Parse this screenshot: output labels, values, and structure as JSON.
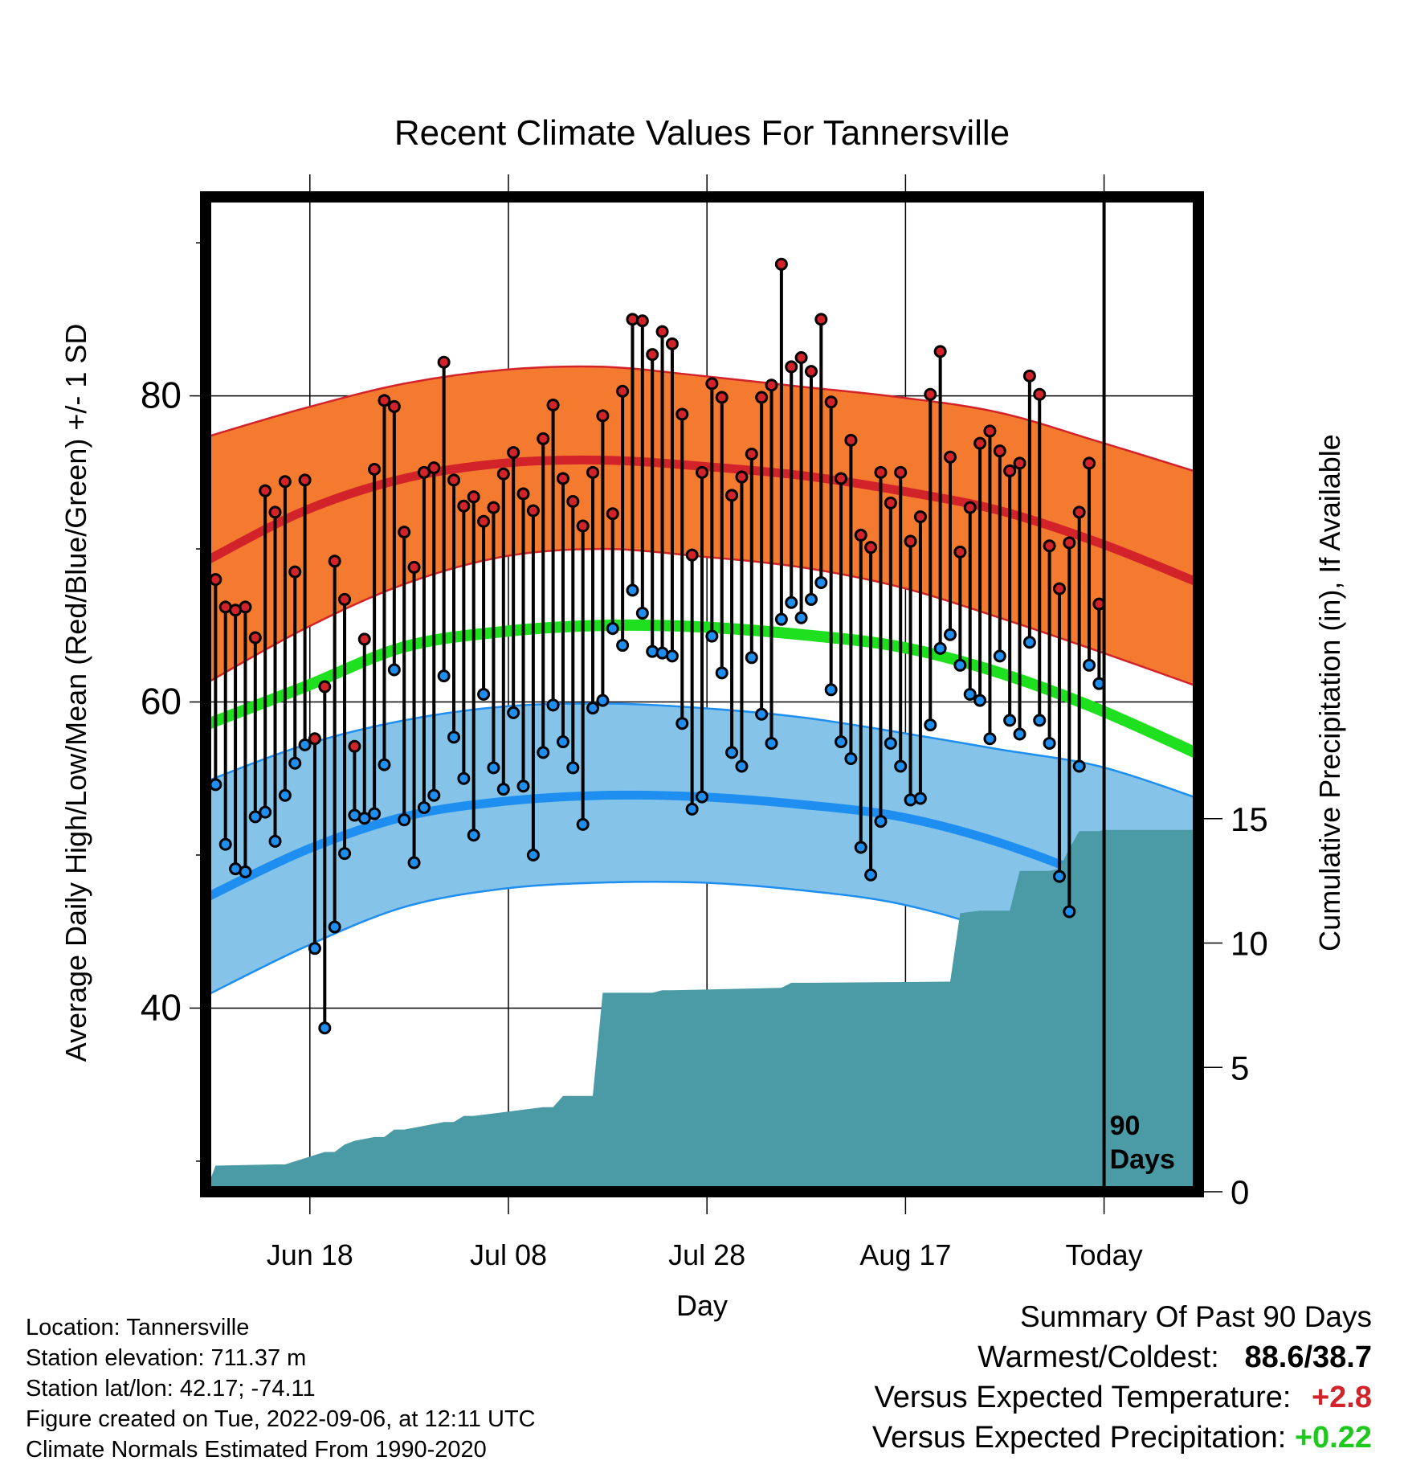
{
  "chart_data": {
    "type": "line",
    "title": "Recent Climate Values For Tannersville",
    "xlabel": "Day",
    "ylabel": "Average Daily High/Low/Mean (Red/Blue/Green) +/- 1 SD",
    "y2label": "Cumulative Precipitation (in), If Available",
    "x_tick_labels": [
      "Jun 18",
      "Jul 08",
      "Jul 28",
      "Aug 17",
      "Today"
    ],
    "x_tick_days": [
      10.5,
      30.5,
      50.5,
      70.5,
      90.5
    ],
    "x_range": [
      0,
      100
    ],
    "y_range": [
      28,
      93
    ],
    "y_ticks": [
      40,
      60,
      80
    ],
    "y2_range": [
      0,
      40
    ],
    "y2_ticks": [
      0,
      5,
      10,
      15
    ],
    "period_label": "90 Days",
    "normals": {
      "day": [
        0,
        10,
        20,
        30,
        40,
        50,
        60,
        70,
        80,
        90,
        100
      ],
      "high_mean": [
        69.2,
        72.5,
        74.6,
        75.6,
        75.8,
        75.4,
        74.8,
        73.8,
        72.5,
        70.4,
        67.8
      ],
      "high_upper": [
        77.3,
        79.2,
        80.8,
        81.7,
        81.9,
        81.3,
        80.6,
        79.9,
        78.9,
        77.0,
        75.0
      ],
      "high_lower": [
        61.2,
        64.8,
        67.7,
        69.5,
        70.0,
        69.5,
        68.8,
        67.5,
        65.5,
        63.3,
        61.0
      ],
      "low_mean": [
        47.2,
        50.3,
        52.5,
        53.5,
        53.9,
        53.8,
        53.3,
        52.5,
        50.8,
        48.3,
        44.8
      ],
      "low_upper": [
        54.8,
        57.2,
        58.8,
        59.7,
        59.9,
        59.6,
        59.0,
        58.0,
        56.9,
        55.8,
        53.7
      ],
      "low_lower": [
        40.8,
        44.0,
        46.6,
        47.8,
        48.2,
        48.2,
        47.7,
        46.8,
        44.9,
        41.8,
        37.8
      ],
      "avg_mean": [
        58.5,
        61.0,
        63.6,
        64.6,
        65.0,
        64.9,
        64.4,
        63.6,
        61.9,
        59.5,
        56.6
      ]
    },
    "daily_highs": [
      68.0,
      66.2,
      66.0,
      66.2,
      64.2,
      73.8,
      72.4,
      74.4,
      68.5,
      74.5,
      57.6,
      61.0,
      69.2,
      66.7,
      57.1,
      64.1,
      75.2,
      79.7,
      79.3,
      71.1,
      68.8,
      75.0,
      75.3,
      82.2,
      74.5,
      72.8,
      73.4,
      71.8,
      72.7,
      74.9,
      76.3,
      73.6,
      72.5,
      77.2,
      79.4,
      74.6,
      73.1,
      71.5,
      75.0,
      78.7,
      72.3,
      80.3,
      85.0,
      84.9,
      82.7,
      84.2,
      83.4,
      78.8,
      69.6,
      75.0,
      80.8,
      79.9,
      73.5,
      74.7,
      76.2,
      79.9,
      80.7,
      88.6,
      81.9,
      82.5,
      81.6,
      85.0,
      79.6,
      74.6,
      77.1,
      70.9,
      70.1,
      75.0,
      73.0,
      75.0,
      70.5,
      72.1,
      80.1,
      82.9,
      76.0,
      69.8,
      72.7,
      76.9,
      77.7,
      76.4,
      75.1,
      75.6,
      81.3,
      80.1,
      70.2,
      67.4,
      70.4,
      72.4,
      75.6,
      66.4
    ],
    "daily_lows": [
      54.6,
      50.7,
      49.1,
      48.9,
      52.5,
      52.8,
      50.9,
      53.9,
      56.0,
      57.2,
      43.9,
      38.7,
      45.3,
      50.1,
      52.6,
      52.4,
      52.7,
      55.9,
      62.1,
      52.3,
      49.5,
      53.1,
      53.9,
      61.7,
      57.7,
      55.0,
      51.3,
      60.5,
      55.7,
      54.3,
      59.3,
      54.5,
      50.0,
      56.7,
      59.8,
      57.4,
      55.7,
      52.0,
      59.6,
      60.1,
      64.8,
      63.7,
      67.3,
      65.8,
      63.3,
      63.2,
      63.0,
      58.6,
      53.0,
      53.8,
      64.3,
      61.9,
      56.7,
      55.8,
      62.9,
      59.2,
      57.3,
      65.4,
      66.5,
      65.5,
      66.7,
      67.8,
      60.8,
      57.4,
      56.3,
      50.5,
      48.7,
      52.2,
      57.3,
      55.8,
      53.6,
      53.7,
      58.5,
      63.5,
      64.4,
      62.4,
      60.5,
      60.1,
      57.6,
      63.0,
      58.8,
      57.9,
      63.9,
      58.8,
      57.3,
      48.6,
      46.3,
      55.8,
      62.4,
      61.2
    ],
    "cumulative_precip": {
      "day": [
        0.0,
        1.0,
        7.0,
        8.0,
        12.0,
        13.0,
        14.0,
        15.0,
        17.0,
        18.0,
        19.0,
        20.0,
        24.0,
        25.0,
        26.0,
        27.0,
        34.0,
        35.0,
        36.0,
        39.0,
        40.0,
        45.0,
        46.0,
        47.0,
        58.0,
        59.0,
        60.0,
        75.0,
        76.0,
        78.0,
        79.0,
        81.0,
        82.0,
        85.0,
        86.0,
        87.0,
        88.0,
        90.0,
        90.5,
        100.0
      ],
      "value": [
        0.0,
        1.05,
        1.1,
        1.1,
        1.6,
        1.6,
        1.9,
        2.05,
        2.2,
        2.2,
        2.5,
        2.5,
        2.8,
        2.8,
        3.05,
        3.05,
        3.4,
        3.4,
        3.85,
        3.85,
        8.0,
        8.0,
        8.1,
        8.1,
        8.2,
        8.4,
        8.4,
        8.45,
        11.2,
        11.3,
        11.3,
        11.3,
        12.9,
        12.9,
        13.0,
        13.8,
        14.5,
        14.5,
        14.55,
        14.55
      ]
    }
  },
  "info": {
    "location": "Location: Tannersville",
    "elevation": "Station elevation: 711.37 m",
    "latlon": "Station lat/lon: 42.17; -74.11",
    "created": "Figure created on Tue, 2022-09-06, at 12:11 UTC",
    "normals": "Climate Normals Estimated From 1990-2020"
  },
  "summary": {
    "title": "Summary Of Past 90 Days",
    "warmest_label": "Warmest/Coldest:",
    "warmest_value": "88.6",
    "coldest_value": "38.7",
    "temp_label": "Versus Expected Temperature:",
    "temp_value": "+2.8",
    "precip_label": "Versus Expected Precipitation:",
    "precip_value": "+0.22"
  },
  "colors": {
    "high_band": "#f47a2f",
    "high_line": "#d2232a",
    "high_edge": "#d2232a",
    "low_band": "#85c3e9",
    "low_line": "#1e8ff0",
    "low_edge": "#1e8ff0",
    "mean_line": "#1ee01e",
    "precip": "#4a9ba5",
    "temp_delta": "#d2232a",
    "precip_delta": "#1ec81e"
  }
}
